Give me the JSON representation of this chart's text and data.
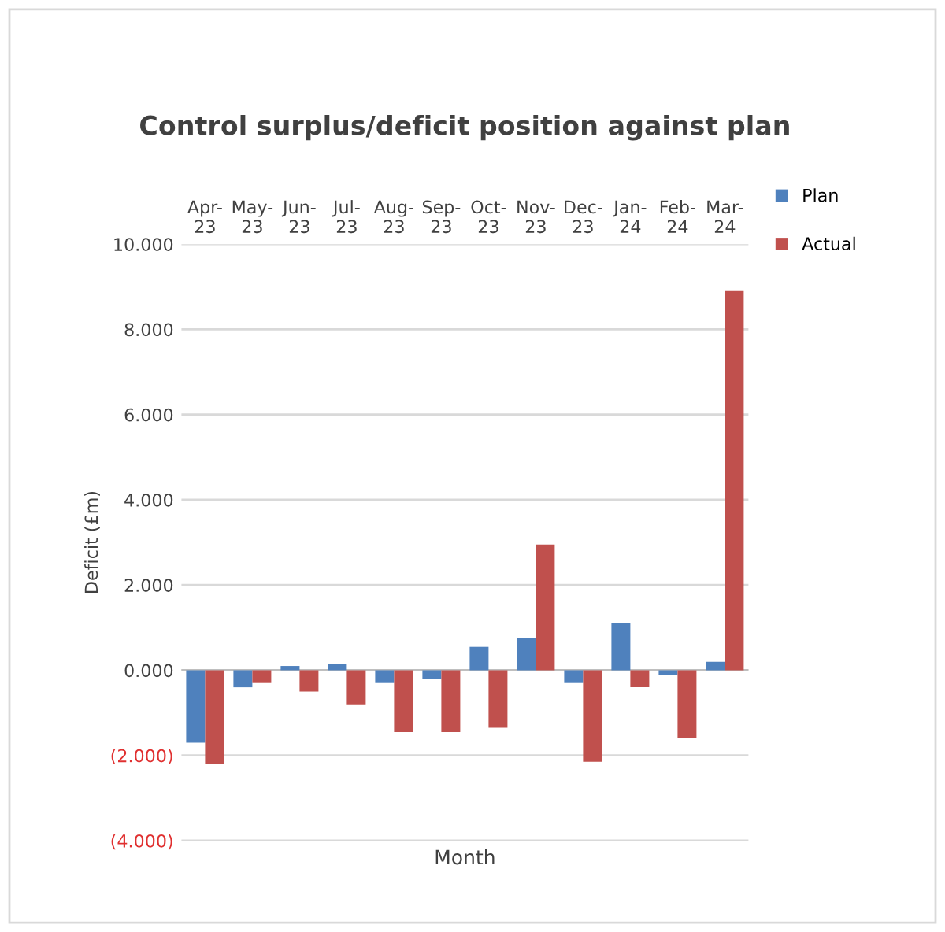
{
  "chart_data": {
    "type": "bar",
    "title": "Control surplus/deficit position against plan",
    "xlabel": "Month",
    "ylabel": "Deficit (£m)",
    "categories": [
      "Apr-\n23",
      "May-\n23",
      "Jun-\n23",
      "Jul-\n23",
      "Aug-\n23",
      "Sep-\n23",
      "Oct-\n23",
      "Nov-\n23",
      "Dec-\n23",
      "Jan-\n24",
      "Feb-\n24",
      "Mar-\n24"
    ],
    "series": [
      {
        "name": "Plan",
        "color": "#4f81bd",
        "values": [
          -1.7,
          -0.4,
          0.1,
          0.15,
          -0.3,
          -0.2,
          0.55,
          0.75,
          -0.3,
          1.1,
          -0.1,
          0.2
        ]
      },
      {
        "name": "Actual",
        "color": "#c0504d",
        "values": [
          -2.2,
          -0.3,
          -0.5,
          -0.8,
          -1.45,
          -1.45,
          -1.35,
          2.95,
          -2.15,
          -0.4,
          -1.6,
          8.9
        ]
      }
    ],
    "ylim": [
      -4,
      10
    ],
    "yticks": [
      {
        "value": -4,
        "label": "(4.000)"
      },
      {
        "value": -2,
        "label": "(2.000)"
      },
      {
        "value": 0,
        "label": "0.000"
      },
      {
        "value": 2,
        "label": "2.000"
      },
      {
        "value": 4,
        "label": "4.000"
      },
      {
        "value": 6,
        "label": "6.000"
      },
      {
        "value": 8,
        "label": "8.000"
      },
      {
        "value": 10,
        "label": "10.000"
      }
    ],
    "grid": "y",
    "legend": "top right"
  }
}
